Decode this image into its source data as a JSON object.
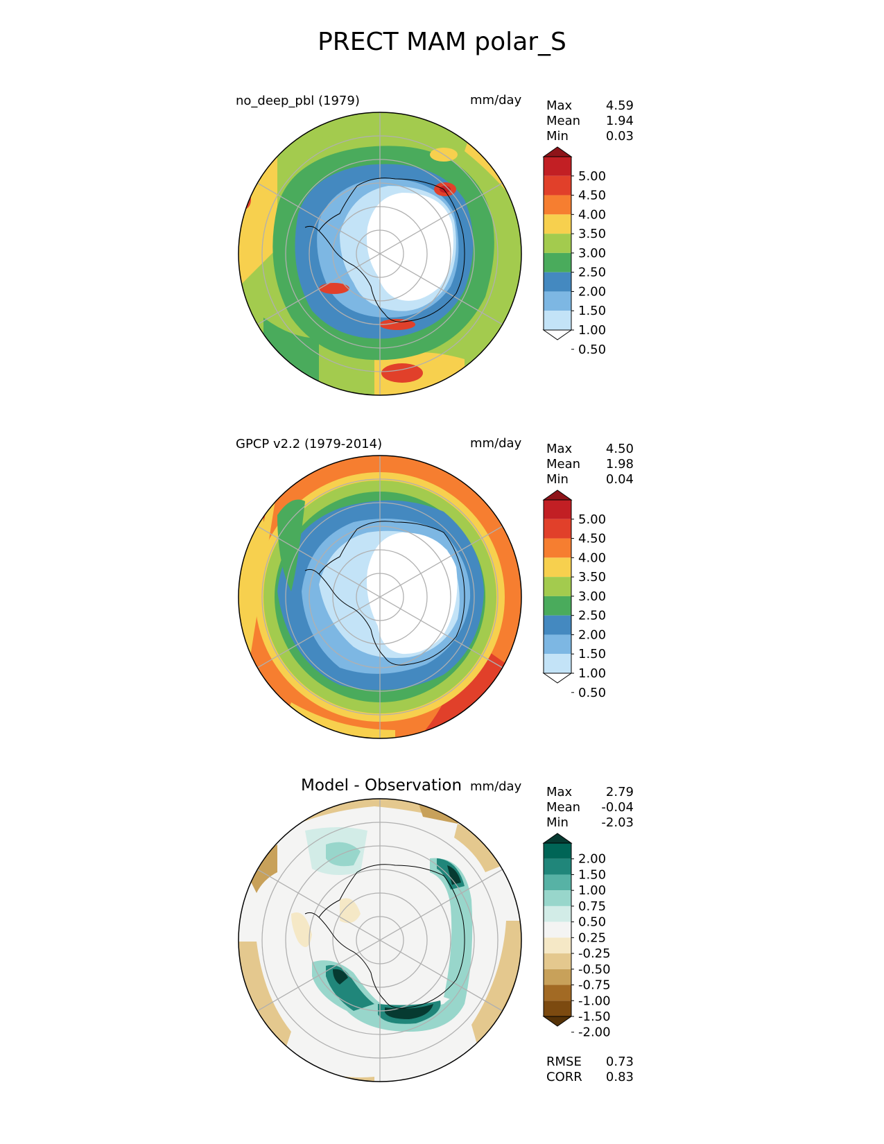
{
  "figure": {
    "title": "PRECT MAM polar_S"
  },
  "panels": [
    {
      "id": "test",
      "left_title": "no_deep_pbl (1979)",
      "center_title": "",
      "units": "mm/day",
      "stats": {
        "Max": "4.59",
        "Mean": "1.94",
        "Min": "0.03"
      },
      "extra_stats": null
    },
    {
      "id": "reference",
      "left_title": "GPCP v2.2 (1979-2014)",
      "center_title": "",
      "units": "mm/day",
      "stats": {
        "Max": "4.50",
        "Mean": "1.98",
        "Min": "0.04"
      },
      "extra_stats": null
    },
    {
      "id": "difference",
      "left_title": "",
      "center_title": "Model - Observation",
      "units": "mm/day",
      "stats": {
        "Max": "2.79",
        "Mean": "-0.04",
        "Min": "-2.03"
      },
      "extra_stats": {
        "RMSE": "0.73",
        "CORR": "0.83"
      }
    }
  ],
  "colorbars": {
    "precip": {
      "labels": [
        "5.00",
        "4.50",
        "4.00",
        "3.50",
        "3.00",
        "2.50",
        "2.00",
        "1.50",
        "1.00",
        "0.50"
      ],
      "colors": [
        "#8e1419",
        "#c21f24",
        "#e1402a",
        "#f67e30",
        "#f7d04e",
        "#a3cb4e",
        "#4aab5c",
        "#4489c0",
        "#7db7e3",
        "#c3e3f7",
        "#ffffff"
      ]
    },
    "diff": {
      "labels": [
        "2.00",
        "1.50",
        "1.00",
        "0.75",
        "0.50",
        "0.25",
        "-0.25",
        "-0.50",
        "-0.75",
        "-1.00",
        "-1.50",
        "-2.00"
      ],
      "colors": [
        "#063a31",
        "#006556",
        "#20867a",
        "#57b2a5",
        "#98d6cb",
        "#d2ece7",
        "#f4f4f3",
        "#f5e8c6",
        "#e4c88e",
        "#c8a15a",
        "#a26a24",
        "#7c4a10",
        "#553207"
      ]
    }
  },
  "map_palette": {
    "white": "#ffffff",
    "lightblue": "#c3e3f7",
    "blue": "#7db7e3",
    "darkblue": "#4489c0",
    "green": "#4aab5c",
    "lightgreen": "#a3cb4e",
    "yellow": "#f7d04e",
    "orange": "#f67e30",
    "red": "#e1402a",
    "darkred": "#c21f24",
    "grid": "#b0b0b0",
    "coast": "#000000",
    "teal_dark": "#063a31",
    "teal": "#20867a",
    "teal_mid": "#57b2a5",
    "teal_light": "#98d6cb",
    "teal_pale": "#d2ece7",
    "neutral": "#f4f4f3",
    "tan_pale": "#f5e8c6",
    "tan": "#e4c88e",
    "brown_light": "#c8a15a",
    "brown": "#a26a24",
    "brown_dark": "#7c4a10"
  }
}
